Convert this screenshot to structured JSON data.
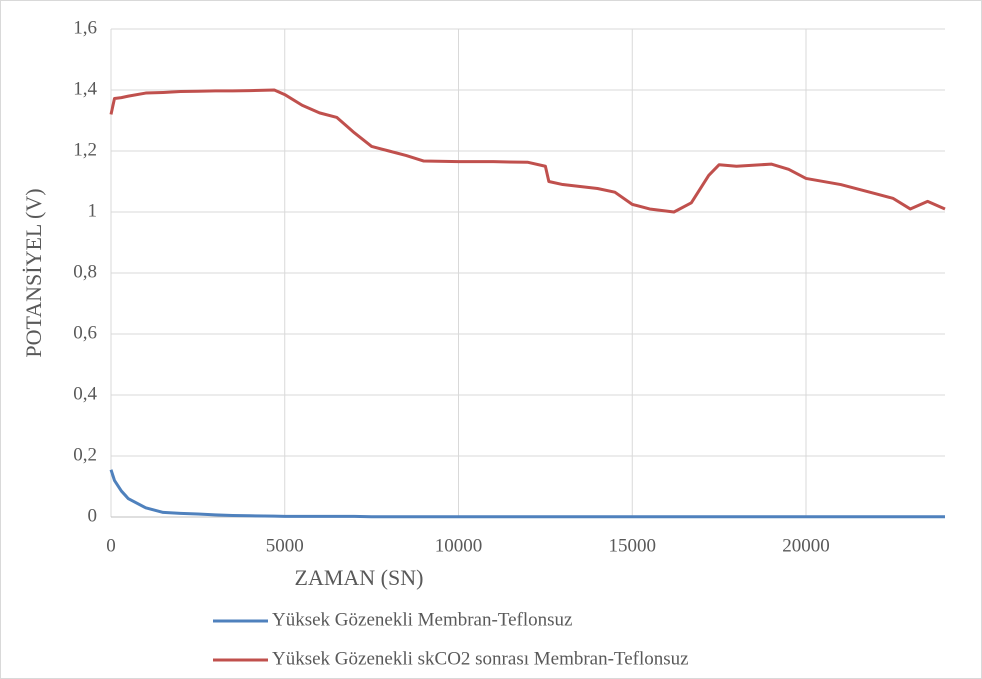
{
  "chart_data": {
    "type": "line",
    "xlabel": "ZAMAN (SN)",
    "ylabel": "POTANSİYEL (V)",
    "x": [
      0,
      100,
      300,
      500,
      1000,
      1500,
      2000,
      2500,
      3000,
      3500,
      4000,
      4700,
      5000,
      5500,
      6000,
      6500,
      7000,
      7500,
      8000,
      8500,
      9000,
      10000,
      11000,
      12000,
      12500,
      12600,
      13000,
      14000,
      14500,
      15000,
      15500,
      16200,
      16700,
      17200,
      17500,
      18000,
      19000,
      19500,
      20000,
      21000,
      22000,
      22500,
      23000,
      23500,
      24000
    ],
    "series": [
      {
        "name": "Yüksek Gözenekli Membran-Teflonsuz",
        "color": "#4f81bd",
        "values": [
          0.155,
          0.12,
          0.085,
          0.06,
          0.03,
          0.015,
          0.012,
          0.01,
          0.007,
          0.005,
          0.004,
          0.003,
          0.002,
          0.002,
          0.002,
          0.002,
          0.002,
          0.001,
          0.001,
          0.001,
          0.001,
          0.001,
          0.001,
          0.001,
          0.001,
          0.001,
          0.001,
          0.001,
          0.001,
          0.001,
          0.001,
          0.001,
          0.001,
          0.001,
          0.001,
          0.001,
          0.001,
          0.001,
          0.001,
          0.001,
          0.001,
          0.001,
          0.001,
          0.001,
          0.001
        ]
      },
      {
        "name": "Yüksek Gözenekli skCO2 sonrası Membran-Teflonsuz",
        "color": "#c0504d",
        "values": [
          1.32,
          1.372,
          1.375,
          1.38,
          1.39,
          1.392,
          1.395,
          1.396,
          1.397,
          1.397,
          1.398,
          1.4,
          1.385,
          1.35,
          1.325,
          1.31,
          1.26,
          1.215,
          1.2,
          1.185,
          1.167,
          1.165,
          1.165,
          1.163,
          1.15,
          1.1,
          1.09,
          1.077,
          1.065,
          1.025,
          1.01,
          1.0,
          1.03,
          1.12,
          1.155,
          1.15,
          1.157,
          1.14,
          1.11,
          1.09,
          1.06,
          1.045,
          1.01,
          1.035,
          1.01
        ]
      }
    ],
    "xlim": [
      0,
      24000
    ],
    "xticks": [
      0,
      5000,
      10000,
      15000,
      20000
    ],
    "ylim": [
      0,
      1.6
    ],
    "yticks": [
      0,
      {
        "value": 0.2,
        "label": "0,2"
      },
      {
        "value": 0.4,
        "label": "0,4"
      },
      {
        "value": 0.6,
        "label": "0,6"
      },
      {
        "value": 0.8,
        "label": "0,8"
      },
      1,
      {
        "value": 1.2,
        "label": "1,2"
      },
      {
        "value": 1.4,
        "label": "1,4"
      },
      {
        "value": 1.6,
        "label": "1,6"
      }
    ],
    "grid": true,
    "legend": "bottom"
  }
}
